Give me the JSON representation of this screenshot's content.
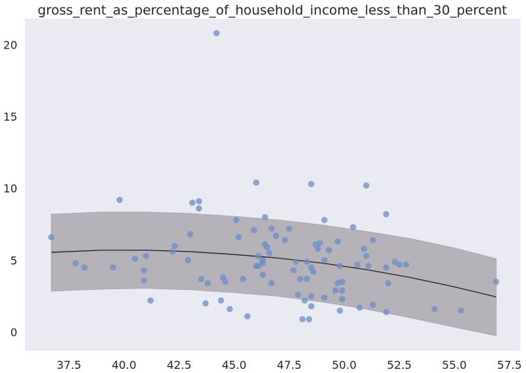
{
  "chart_data": {
    "type": "scatter",
    "title": "gross_rent_as_percentage_of_household_income_less_than_30_percent",
    "xlabel": "",
    "ylabel": "",
    "xlim": [
      35.5,
      58.0
    ],
    "ylim": [
      -1.3,
      21.8
    ],
    "grid": false,
    "x_ticks": [
      "37.5",
      "40.0",
      "42.5",
      "45.0",
      "47.5",
      "50.0",
      "52.5",
      "55.0",
      "57.5"
    ],
    "y_ticks": [
      "0",
      "5",
      "10",
      "15",
      "20"
    ],
    "colors": {
      "points": "#6b8cc7",
      "band": "#b5b2b9",
      "line": "#222222",
      "background": "#eaeaf2"
    },
    "points": [
      {
        "x": 36.7,
        "y": 6.6
      },
      {
        "x": 37.8,
        "y": 4.8
      },
      {
        "x": 38.2,
        "y": 4.5
      },
      {
        "x": 39.5,
        "y": 4.5
      },
      {
        "x": 39.8,
        "y": 9.2
      },
      {
        "x": 40.5,
        "y": 5.1
      },
      {
        "x": 40.9,
        "y": 4.3
      },
      {
        "x": 40.9,
        "y": 3.6
      },
      {
        "x": 41.0,
        "y": 5.3
      },
      {
        "x": 41.2,
        "y": 2.2
      },
      {
        "x": 42.2,
        "y": 5.6
      },
      {
        "x": 42.3,
        "y": 6.0
      },
      {
        "x": 42.9,
        "y": 5.0
      },
      {
        "x": 43.0,
        "y": 6.8
      },
      {
        "x": 43.1,
        "y": 9.0
      },
      {
        "x": 43.4,
        "y": 9.1
      },
      {
        "x": 43.4,
        "y": 8.6
      },
      {
        "x": 43.5,
        "y": 3.7
      },
      {
        "x": 43.7,
        "y": 2.0
      },
      {
        "x": 43.8,
        "y": 3.4
      },
      {
        "x": 44.2,
        "y": 20.8
      },
      {
        "x": 44.4,
        "y": 2.2
      },
      {
        "x": 44.5,
        "y": 3.8
      },
      {
        "x": 44.6,
        "y": 3.5
      },
      {
        "x": 44.8,
        "y": 1.6
      },
      {
        "x": 45.1,
        "y": 7.8
      },
      {
        "x": 45.2,
        "y": 6.6
      },
      {
        "x": 45.4,
        "y": 3.7
      },
      {
        "x": 45.6,
        "y": 1.1
      },
      {
        "x": 45.9,
        "y": 7.1
      },
      {
        "x": 46.0,
        "y": 10.4
      },
      {
        "x": 46.0,
        "y": 4.6
      },
      {
        "x": 46.1,
        "y": 4.6
      },
      {
        "x": 46.1,
        "y": 5.3
      },
      {
        "x": 46.3,
        "y": 4.8
      },
      {
        "x": 46.3,
        "y": 4.0
      },
      {
        "x": 46.3,
        "y": 5.0
      },
      {
        "x": 46.4,
        "y": 8.0
      },
      {
        "x": 46.4,
        "y": 6.1
      },
      {
        "x": 46.5,
        "y": 5.9
      },
      {
        "x": 46.6,
        "y": 5.5
      },
      {
        "x": 46.7,
        "y": 7.2
      },
      {
        "x": 46.7,
        "y": 3.4
      },
      {
        "x": 46.9,
        "y": 6.7
      },
      {
        "x": 47.3,
        "y": 6.4
      },
      {
        "x": 47.5,
        "y": 7.2
      },
      {
        "x": 47.7,
        "y": 4.3
      },
      {
        "x": 47.8,
        "y": 4.9
      },
      {
        "x": 47.9,
        "y": 2.6
      },
      {
        "x": 48.0,
        "y": 3.7
      },
      {
        "x": 48.1,
        "y": 0.9
      },
      {
        "x": 48.2,
        "y": 2.2
      },
      {
        "x": 48.3,
        "y": 4.9
      },
      {
        "x": 48.3,
        "y": 3.7
      },
      {
        "x": 48.4,
        "y": 0.9
      },
      {
        "x": 48.5,
        "y": 10.3
      },
      {
        "x": 48.5,
        "y": 1.8
      },
      {
        "x": 48.5,
        "y": 4.5
      },
      {
        "x": 48.5,
        "y": 2.5
      },
      {
        "x": 48.6,
        "y": 4.2
      },
      {
        "x": 48.7,
        "y": 6.1
      },
      {
        "x": 48.8,
        "y": 5.8
      },
      {
        "x": 48.9,
        "y": 6.2
      },
      {
        "x": 49.1,
        "y": 7.8
      },
      {
        "x": 49.1,
        "y": 5.0
      },
      {
        "x": 49.1,
        "y": 2.4
      },
      {
        "x": 49.3,
        "y": 5.7
      },
      {
        "x": 49.6,
        "y": 2.9
      },
      {
        "x": 49.7,
        "y": 6.3
      },
      {
        "x": 49.7,
        "y": 3.4
      },
      {
        "x": 49.8,
        "y": 4.6
      },
      {
        "x": 49.8,
        "y": 1.5
      },
      {
        "x": 49.9,
        "y": 2.9
      },
      {
        "x": 49.9,
        "y": 3.5
      },
      {
        "x": 49.9,
        "y": 2.3
      },
      {
        "x": 50.4,
        "y": 7.3
      },
      {
        "x": 50.6,
        "y": 4.7
      },
      {
        "x": 50.7,
        "y": 1.7
      },
      {
        "x": 50.9,
        "y": 5.8
      },
      {
        "x": 51.0,
        "y": 10.2
      },
      {
        "x": 51.0,
        "y": 5.3
      },
      {
        "x": 51.1,
        "y": 4.6
      },
      {
        "x": 51.3,
        "y": 6.4
      },
      {
        "x": 51.3,
        "y": 1.9
      },
      {
        "x": 51.9,
        "y": 8.2
      },
      {
        "x": 51.9,
        "y": 4.5
      },
      {
        "x": 51.9,
        "y": 1.4
      },
      {
        "x": 52.0,
        "y": 3.4
      },
      {
        "x": 52.3,
        "y": 4.9
      },
      {
        "x": 52.5,
        "y": 4.7
      },
      {
        "x": 52.8,
        "y": 4.7
      },
      {
        "x": 54.1,
        "y": 1.6
      },
      {
        "x": 55.3,
        "y": 1.5
      },
      {
        "x": 56.9,
        "y": 3.5
      }
    ],
    "fit_line": {
      "x": [
        36.7,
        39.0,
        41.0,
        43.0,
        45.0,
        47.0,
        49.0,
        51.0,
        53.0,
        55.0,
        56.9
      ],
      "y": [
        5.55,
        5.7,
        5.7,
        5.6,
        5.4,
        5.15,
        4.8,
        4.35,
        3.8,
        3.15,
        2.45
      ]
    },
    "band": {
      "x": [
        36.7,
        39.0,
        41.0,
        43.0,
        45.0,
        47.0,
        49.0,
        51.0,
        53.0,
        55.0,
        56.9
      ],
      "lower": [
        2.85,
        3.0,
        3.05,
        2.95,
        2.75,
        2.5,
        2.1,
        1.6,
        1.0,
        0.35,
        -0.25
      ],
      "upper": [
        8.2,
        8.35,
        8.35,
        8.25,
        8.05,
        7.8,
        7.45,
        7.0,
        6.5,
        5.85,
        5.1
      ]
    }
  }
}
